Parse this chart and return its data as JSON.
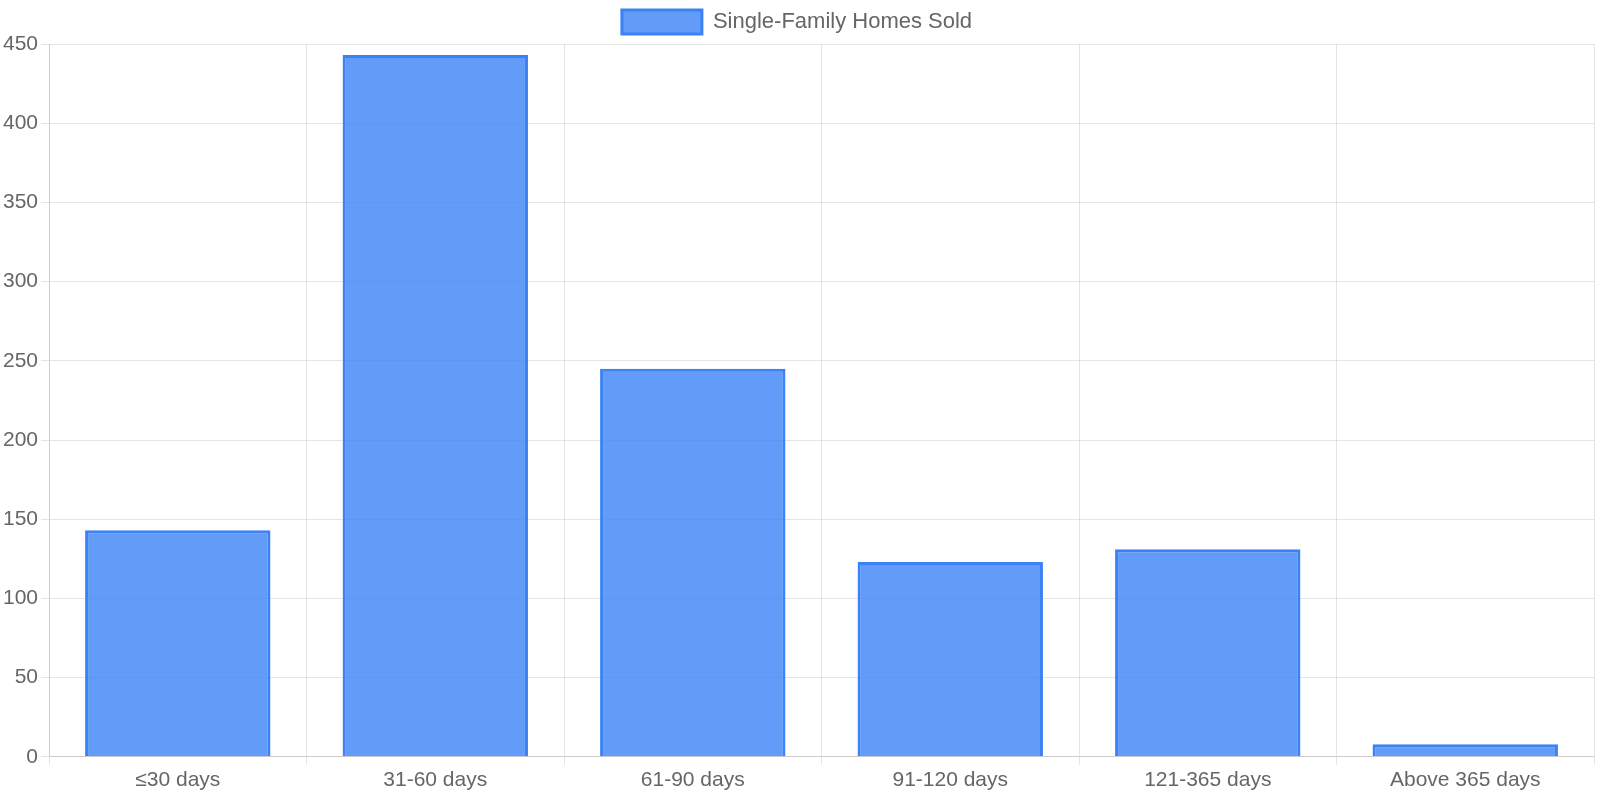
{
  "chart_data": {
    "type": "bar",
    "categories": [
      "≤30 days",
      "31-60 days",
      "61-90 days",
      "91-120 days",
      "121-365 days",
      "Above 365 days"
    ],
    "series": [
      {
        "name": "Single-Family Homes Sold",
        "color": "#3b82f6",
        "values": [
          143,
          443,
          245,
          123,
          131,
          8
        ]
      }
    ],
    "ylim": [
      0,
      450
    ],
    "yticks": [
      0,
      50,
      100,
      150,
      200,
      250,
      300,
      350,
      400,
      450
    ],
    "grid": true,
    "legend": "top"
  }
}
